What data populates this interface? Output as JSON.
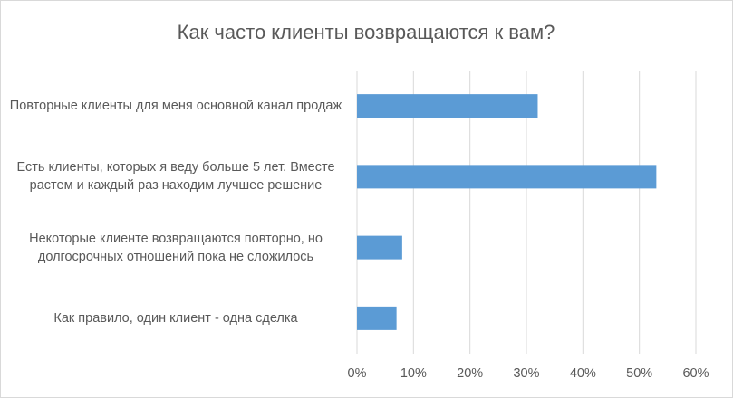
{
  "chart_data": {
    "type": "bar",
    "orientation": "horizontal",
    "title": "Как часто клиенты возвращаются к вам?",
    "categories": [
      "Повторные клиенты для меня основной канал продаж",
      "Есть клиенты, которых я веду больше 5 лет. Вместе растем и каждый раз находим лучшее решение",
      "Некоторые клиенте возвращаются повторно, но долгосрочных отношений пока не сложилось",
      "Как правило, один клиент - одна сделка"
    ],
    "values": [
      32,
      53,
      8,
      7
    ],
    "color": "#5b9bd5",
    "xlim": [
      0,
      60
    ],
    "xticks": [
      {
        "value": 0,
        "label": "0%"
      },
      {
        "value": 10,
        "label": "10%"
      },
      {
        "value": 20,
        "label": "20%"
      },
      {
        "value": 30,
        "label": "30%"
      },
      {
        "value": 40,
        "label": "40%"
      },
      {
        "value": 50,
        "label": "50%"
      },
      {
        "value": 60,
        "label": "60%"
      }
    ],
    "grid": true
  }
}
